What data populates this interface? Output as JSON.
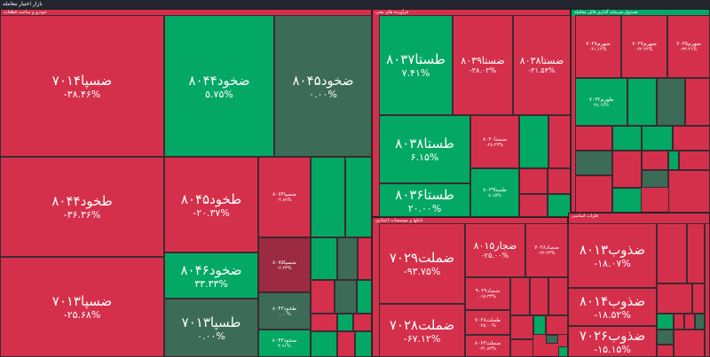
{
  "title": "بازار اختیار معامله",
  "sectors": [
    {
      "name": "خودرو و ساخت قطعات",
      "tiles": [
        {
          "n": "ضسپا۷۰۱۴",
          "p": "-۳۸.۴۶%"
        },
        {
          "n": "ضخود۸۰۴۴",
          "p": "۵.۷۵%"
        },
        {
          "n": "ضخود۸۰۴۵",
          "p": "۰.۰۰%"
        },
        {
          "n": "طخود۸۰۴۴",
          "p": "-۳۶.۳۶%"
        },
        {
          "n": "ضسپا۷۰۱۳",
          "p": "-۲۵.۶۸%"
        },
        {
          "n": "طخود۸۰۴۵",
          "p": "-۲۰.۳۷%"
        },
        {
          "n": "ضخود۸۰۴۶",
          "p": "۳۳.۳۳%"
        },
        {
          "n": "طسپا۷۰۱۳",
          "p": "۰.۰۰%"
        },
        {
          "n": "ضسپا۸۰۷۴",
          "p": "-۴.۸۹%"
        },
        {
          "n": "ضسپا۸۰۷۵",
          "p": "-۲.۲۳%"
        },
        {
          "n": "طخود۸۰۴۳",
          "p": "۰.۰۰%"
        },
        {
          "n": "ضخود۸۰۴۳",
          "p": "۳.۹۱%"
        }
      ]
    },
    {
      "name": "فرآورده های نفتی",
      "tiles": [
        {
          "n": "طستا۸۰۳۷",
          "p": "۷.۴۱%"
        },
        {
          "n": "ضستا۸۰۳۹",
          "p": "-۳۸.۰۳%"
        },
        {
          "n": "ضستا۸۰۳۸",
          "p": "-۳۱.۵۴%"
        },
        {
          "n": "طستا۸۰۳۸",
          "p": "۶.۱۵%"
        },
        {
          "n": "طستا۸۰۳۶",
          "p": "۲۰.۰۰%"
        },
        {
          "n": "ضستا۸۰۴۰",
          "p": "-۲۸.۲۳%"
        },
        {
          "n": "طستا۸۰۳۹",
          "p": "۸.۱۵%"
        }
      ]
    },
    {
      "name": "صندوق سرمایه گذاری قابل معامله",
      "tiles": [
        {
          "n": "ضهرم۷۰۳۸",
          "p": "-۴۱.۱۲%"
        },
        {
          "n": "ضهرم۷۰۳۷",
          "p": "-۴۲.۲۲%"
        },
        {
          "n": "ضهرم۷۰۳۵",
          "p": "-۳۳.۲۱%"
        },
        {
          "n": "طهرم۷۰۳۲",
          "p": "۲۸.۱۷%"
        }
      ]
    },
    {
      "name": "بانکها و موسسات اعتباری",
      "tiles": [
        {
          "n": "ضملت۷۰۲۹",
          "p": "-۹۳.۷۵%"
        },
        {
          "n": "ضملت۷۰۲۸",
          "p": "-۶۷.۱۲%"
        },
        {
          "n": "ضجار۸۰۱۵",
          "p": "-۲۵.۰۰%"
        },
        {
          "n": "ضصاد۷۰۲۸",
          "p": "-۲۲.۲۳%"
        },
        {
          "n": "ضصاد۹۰۲۹",
          "p": "-۱۵.۳۳%"
        },
        {
          "n": "طملت۷۰۲۸",
          "p": "-۲۵.۰۰%"
        },
        {
          "n": "ضملت۸۰۶۳",
          "p": "-۳۱.۸۳%"
        }
      ]
    },
    {
      "name": "فلزات اساسی",
      "tiles": [
        {
          "n": "ضذوب۸۰۱۳",
          "p": "-۱۸.۰۷%"
        },
        {
          "n": "ضذوب۸۰۱۴",
          "p": "-۱۸.۵۲%"
        },
        {
          "n": "ضذوب۷۰۲۶",
          "p": "-۱۵.۱۵%"
        }
      ]
    }
  ]
}
